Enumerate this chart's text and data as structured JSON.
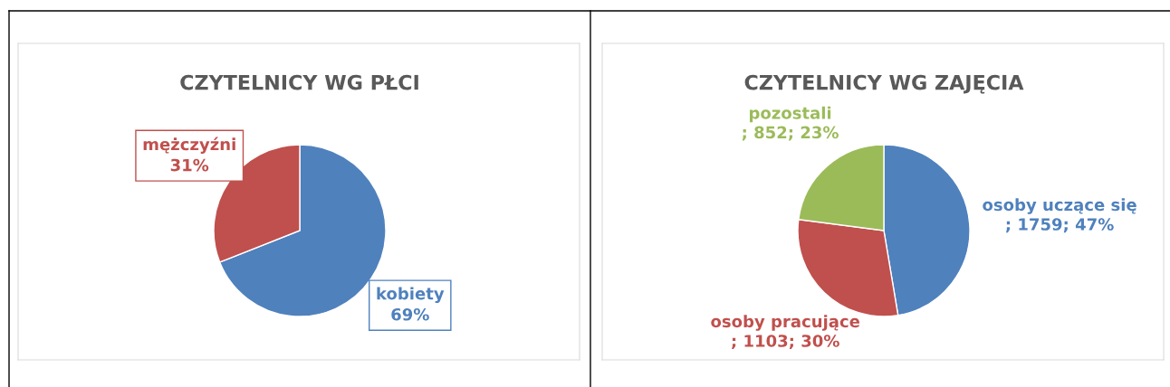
{
  "chart_data": [
    {
      "type": "pie",
      "title": "CZYTELNICY WG PŁCI",
      "categories": [
        "kobiety",
        "mężczyźni"
      ],
      "values": [
        69,
        31
      ],
      "colors": [
        "#4f81bd",
        "#c0504d"
      ],
      "value_labels": [
        "69%",
        "31%"
      ]
    },
    {
      "type": "pie",
      "title": "CZYTELNICY WG ZAJĘCIA",
      "categories": [
        "osoby uczące się",
        "osoby pracujące",
        "pozostali"
      ],
      "values": [
        1759,
        1103,
        852
      ],
      "colors": [
        "#4f81bd",
        "#c0504d",
        "#9bbb59"
      ],
      "value_labels": [
        "; 1759; 47%",
        "; 1103; 30%",
        "; 852; 23%"
      ]
    }
  ]
}
